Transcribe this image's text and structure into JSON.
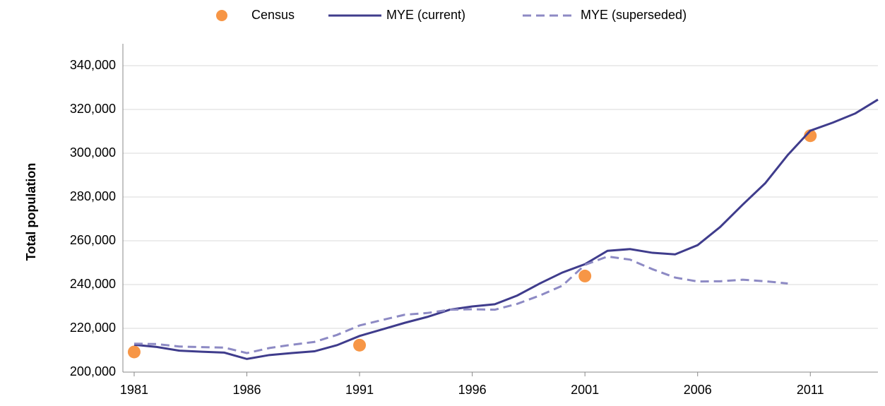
{
  "chart_data": {
    "type": "line",
    "y_label": "Total population",
    "x": [
      1981,
      1982,
      1983,
      1984,
      1985,
      1986,
      1987,
      1988,
      1989,
      1990,
      1991,
      1992,
      1993,
      1994,
      1995,
      1996,
      1997,
      1998,
      1999,
      2000,
      2001,
      2002,
      2003,
      2004,
      2005,
      2006,
      2007,
      2008,
      2009,
      2010,
      2011,
      2012,
      2013,
      2014
    ],
    "series": [
      {
        "name": "Census",
        "color": "#f79646",
        "style": "marker",
        "values": [
          209200,
          null,
          null,
          null,
          null,
          null,
          null,
          null,
          null,
          null,
          212300,
          null,
          null,
          null,
          null,
          null,
          null,
          null,
          null,
          null,
          243900,
          null,
          null,
          null,
          null,
          null,
          null,
          null,
          null,
          null,
          308000,
          null,
          null,
          null
        ]
      },
      {
        "name": "MYE (current)",
        "color": "#3f3c8c",
        "style": "solid",
        "values": [
          212500,
          211500,
          209800,
          209300,
          208900,
          206000,
          207800,
          208700,
          209500,
          212300,
          216500,
          219500,
          222500,
          225200,
          228500,
          230000,
          231000,
          235000,
          240500,
          245500,
          249300,
          255400,
          256200,
          254500,
          253800,
          258000,
          266300,
          276500,
          286300,
          299200,
          310300,
          314000,
          318200,
          324500
        ]
      },
      {
        "name": "MYE (superseded)",
        "color": "#8d8ac4",
        "style": "dashed",
        "values": [
          213000,
          212800,
          211700,
          211400,
          211200,
          208700,
          211000,
          212500,
          213800,
          217000,
          221300,
          223800,
          226200,
          227000,
          228500,
          228700,
          228500,
          231200,
          235000,
          239500,
          249000,
          252800,
          251400,
          247000,
          243200,
          241400,
          241500,
          242200,
          241500,
          240500,
          null,
          null,
          null,
          null
        ]
      }
    ],
    "xlim": [
      1980.5,
      2014
    ],
    "xticks": [
      1981,
      1986,
      1991,
      1996,
      2001,
      2006,
      2011
    ],
    "ylim": [
      200000,
      340000
    ],
    "yticks": [
      {
        "value": 200000,
        "label": "200,000"
      },
      {
        "value": 220000,
        "label": "220,000"
      },
      {
        "value": 240000,
        "label": "240,000"
      },
      {
        "value": 260000,
        "label": "260,000"
      },
      {
        "value": 280000,
        "label": "280,000"
      },
      {
        "value": 300000,
        "label": "300,000"
      },
      {
        "value": 320000,
        "label": "320,000"
      },
      {
        "value": 340000,
        "label": "340,000"
      }
    ],
    "grid": true,
    "legend": "top"
  }
}
